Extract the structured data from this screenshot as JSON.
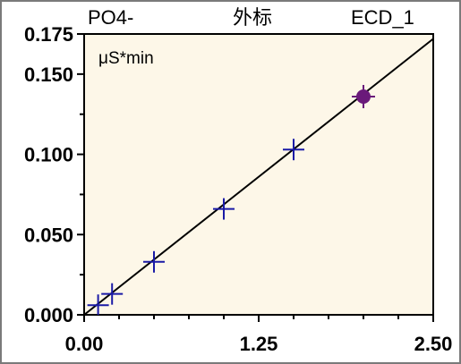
{
  "header": {
    "analyte": "PO4-",
    "method": "外标",
    "detector": "ECD_1"
  },
  "chart_data": {
    "type": "scatter",
    "title": "",
    "xlabel": "",
    "ylabel": "μS*min",
    "xlim": [
      0.0,
      2.5
    ],
    "ylim": [
      0.0,
      0.175
    ],
    "x_ticks": [
      "0.00",
      "1.25",
      "2.50"
    ],
    "y_ticks": [
      "0.000",
      "0.050",
      "0.100",
      "0.150",
      "0.175"
    ],
    "plot_background": "#fdf7e8",
    "series": [
      {
        "type": "scatter",
        "marker": "plus",
        "color": "#1a1aa6",
        "points": [
          {
            "x": 0.1,
            "y": 0.006
          },
          {
            "x": 0.2,
            "y": 0.013
          },
          {
            "x": 0.5,
            "y": 0.033
          },
          {
            "x": 1.0,
            "y": 0.066
          },
          {
            "x": 1.5,
            "y": 0.103
          }
        ]
      },
      {
        "type": "scatter",
        "marker": "circle",
        "color": "#6a1a7a",
        "points": [
          {
            "x": 2.0,
            "y": 0.136
          }
        ]
      },
      {
        "type": "line",
        "color": "#000000",
        "points": [
          {
            "x": 0.0,
            "y": 0.0
          },
          {
            "x": 2.5,
            "y": 0.172
          }
        ]
      }
    ]
  }
}
